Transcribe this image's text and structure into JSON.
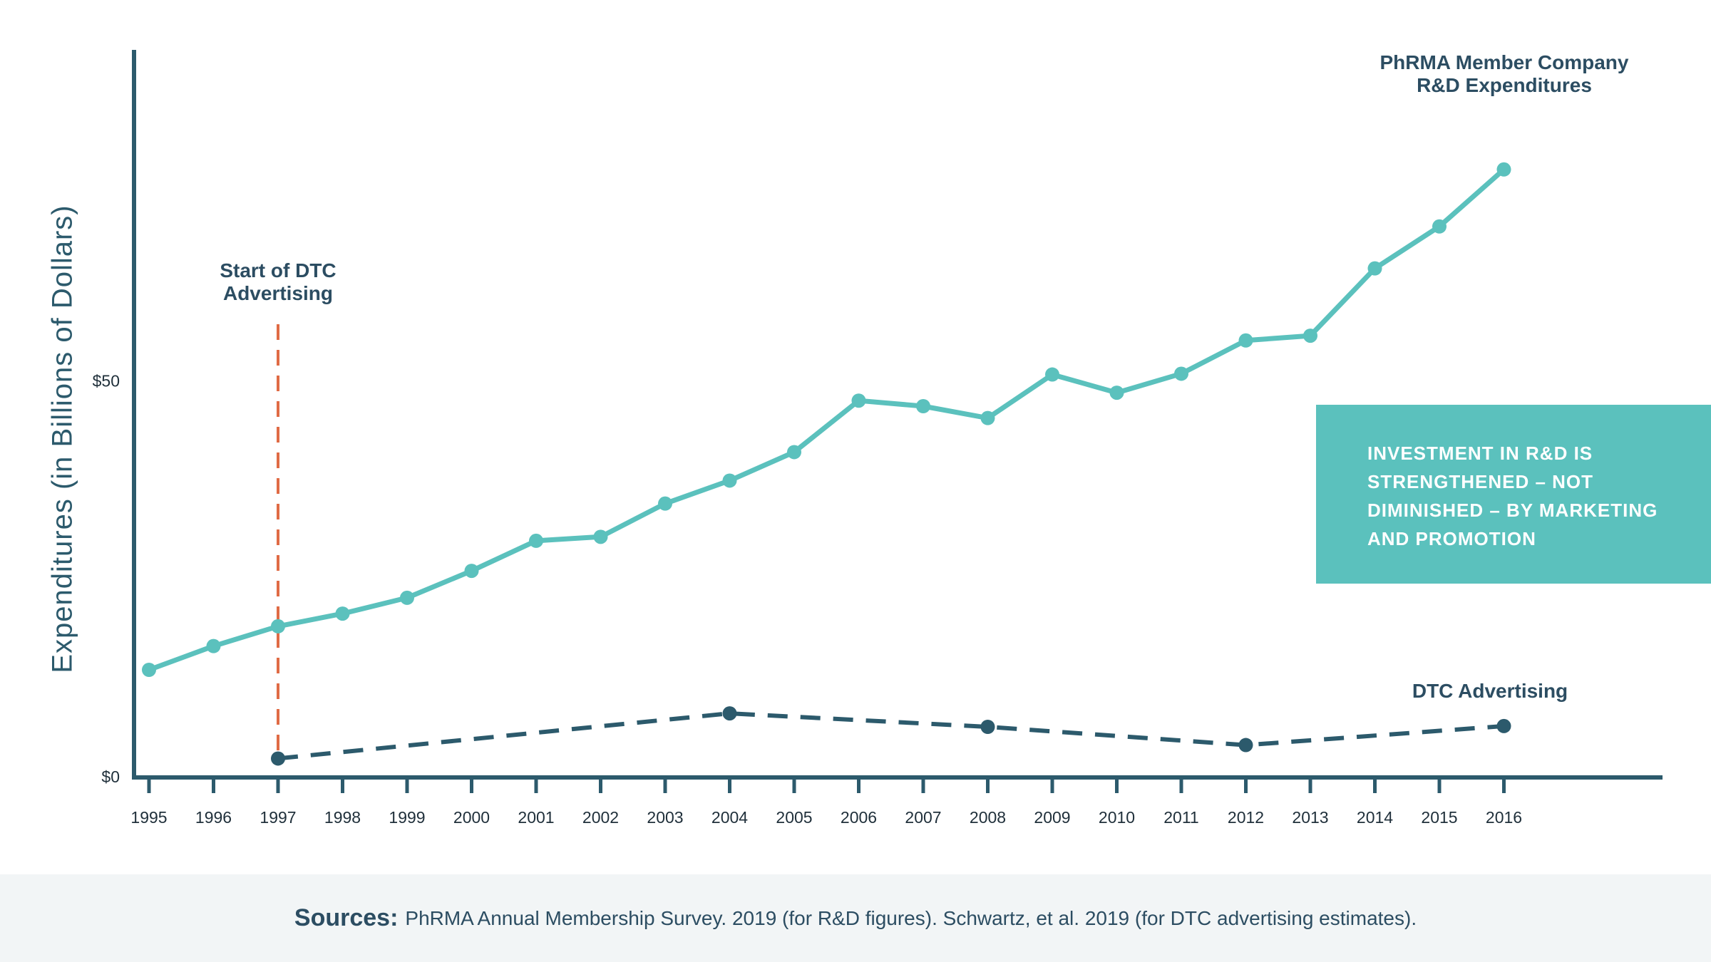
{
  "colors": {
    "rd_series": "#5bc1bd",
    "dtc_series": "#2c5a6c",
    "axis": "#2c5a6c",
    "dtc_start_line": "#e06b45",
    "callout_bg": "#5bc1bd",
    "footer_bg": "#f2f5f6"
  },
  "annotations": {
    "dtc_start_line1": "Start of DTC",
    "dtc_start_line2": "Advertising",
    "rd_label_line1": "PhRMA Member Company",
    "rd_label_line2": "R&D Expenditures",
    "dtc_label": "DTC Advertising"
  },
  "callout": {
    "text": "INVESTMENT IN R&D IS STRENGTHENED – NOT DIMINISHED – BY MARKETING AND PROMOTION"
  },
  "footer": {
    "label": "Sources:",
    "text": "PhRMA Annual Membership Survey. 2019 (for R&D figures). Schwartz, et al. 2019 (for DTC advertising estimates)."
  },
  "chart_data": {
    "type": "line",
    "title": "",
    "xlabel": "",
    "ylabel": "Expenditures (in Billions of Dollars)",
    "x": [
      "1995",
      "1996",
      "1997",
      "1998",
      "1999",
      "2000",
      "2001",
      "2002",
      "2003",
      "2004",
      "2005",
      "2006",
      "2007",
      "2008",
      "2009",
      "2010",
      "2011",
      "2012",
      "2013",
      "2014",
      "2015",
      "2016"
    ],
    "ylim": [
      0,
      90
    ],
    "yticks": [
      {
        "value": 0,
        "label": "$0"
      },
      {
        "value": 50,
        "label": "$50"
      }
    ],
    "series": [
      {
        "name": "PhRMA Member Company R&D Expenditures",
        "style": "solid",
        "points": [
          {
            "x": "1995",
            "y": 13.5
          },
          {
            "x": "1996",
            "y": 16.5
          },
          {
            "x": "1997",
            "y": 19.0
          },
          {
            "x": "1998",
            "y": 20.6
          },
          {
            "x": "1999",
            "y": 22.6
          },
          {
            "x": "2000",
            "y": 26.0
          },
          {
            "x": "2001",
            "y": 29.8
          },
          {
            "x": "2002",
            "y": 30.3
          },
          {
            "x": "2003",
            "y": 34.5
          },
          {
            "x": "2004",
            "y": 37.4
          },
          {
            "x": "2005",
            "y": 41.0
          },
          {
            "x": "2006",
            "y": 47.5
          },
          {
            "x": "2007",
            "y": 46.8
          },
          {
            "x": "2008",
            "y": 45.3
          },
          {
            "x": "2009",
            "y": 50.8
          },
          {
            "x": "2010",
            "y": 48.5
          },
          {
            "x": "2011",
            "y": 50.9
          },
          {
            "x": "2012",
            "y": 55.1
          },
          {
            "x": "2013",
            "y": 55.7
          },
          {
            "x": "2014",
            "y": 64.2
          },
          {
            "x": "2015",
            "y": 69.5
          },
          {
            "x": "2016",
            "y": 76.7
          }
        ]
      },
      {
        "name": "DTC Advertising",
        "style": "dashed",
        "points": [
          {
            "x": "1997",
            "y": 2.3
          },
          {
            "x": "2004",
            "y": 8.0
          },
          {
            "x": "2008",
            "y": 6.3
          },
          {
            "x": "2012",
            "y": 4.0
          },
          {
            "x": "2016",
            "y": 6.4
          }
        ]
      }
    ],
    "reference_lines": [
      {
        "x": "1997",
        "style": "dashed",
        "label": "Start of DTC Advertising"
      }
    ],
    "grid": false,
    "legend": "none (series labeled directly)"
  }
}
